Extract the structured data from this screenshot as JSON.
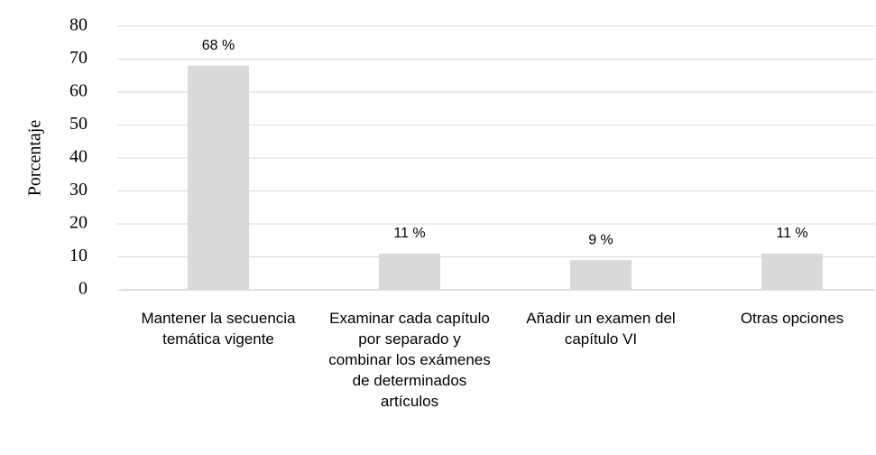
{
  "chart_data": {
    "type": "bar",
    "y_label": "Porcentaje",
    "categories": [
      "Mantener la secuencia temática vigente",
      "Examinar cada capítulo por separado y combinar los exámenes de determinados artículos",
      "Añadir un examen del capítulo VI",
      "Otras opciones"
    ],
    "values": [
      68,
      11,
      9,
      11
    ],
    "value_labels": [
      "68 %",
      "11 %",
      "9 %",
      "11 %"
    ],
    "color": "#d9d9d9",
    "ylim": [
      0,
      80
    ],
    "yticks": [
      0,
      10,
      20,
      30,
      40,
      50,
      60,
      70,
      80
    ],
    "grid": true
  }
}
